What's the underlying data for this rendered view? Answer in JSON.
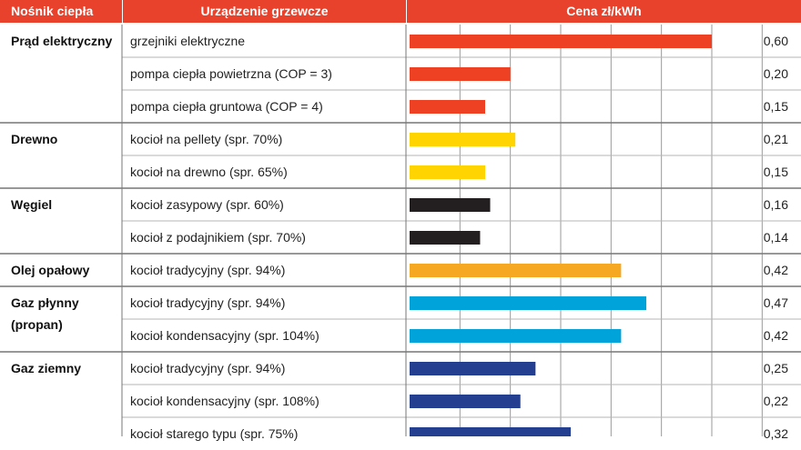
{
  "header": {
    "col1": "Nośnik ciepła",
    "col2": "Urządzenie grzewcze",
    "col3": "Cena zł/kWh"
  },
  "groups": [
    {
      "label": "Prąd elektryczny",
      "rows": 3
    },
    {
      "label": "Drewno",
      "rows": 2
    },
    {
      "label": "Węgiel",
      "rows": 2
    },
    {
      "label": "Olej opałowy",
      "rows": 1
    },
    {
      "label": "Gaz płynny (propan)",
      "rows": 2
    },
    {
      "label": "Gaz ziemny",
      "rows": 3
    }
  ],
  "chart_data": {
    "type": "bar",
    "orientation": "horizontal",
    "title": "Cena zł/kWh",
    "xlim": [
      0,
      0.6
    ],
    "grid": true,
    "categories": [
      "grzejniki elektryczne",
      "pompa ciepła powietrzna (COP = 3)",
      "pompa ciepła gruntowa (COP = 4)",
      "kocioł na pellety (spr. 70%)",
      "kocioł na drewno (spr. 65%)",
      "kocioł zasypowy (spr. 60%)",
      "kocioł z podajnikiem (spr. 70%)",
      "kocioł tradycyjny (spr. 94%)",
      "kocioł tradycyjny (spr. 94%)",
      "kocioł kondensacyjny (spr. 104%)",
      "kocioł tradycyjny (spr. 94%)",
      "kocioł kondensacyjny (spr. 108%)",
      "kocioł starego typu (spr. 75%)"
    ],
    "values": [
      0.6,
      0.2,
      0.15,
      0.21,
      0.15,
      0.16,
      0.14,
      0.42,
      0.47,
      0.42,
      0.25,
      0.22,
      0.32
    ],
    "value_labels": [
      "0,60",
      "0,20",
      "0,15",
      "0,21",
      "0,15",
      "0,16",
      "0,14",
      "0,42",
      "0,47",
      "0,42",
      "0,25",
      "0,22",
      "0,32"
    ],
    "colors": [
      "#EE4123",
      "#EE4123",
      "#EE4123",
      "#FFD400",
      "#FFD400",
      "#231F20",
      "#231F20",
      "#F7A823",
      "#00A3DA",
      "#00A3DA",
      "#243E90",
      "#243E90",
      "#243E90"
    ]
  }
}
